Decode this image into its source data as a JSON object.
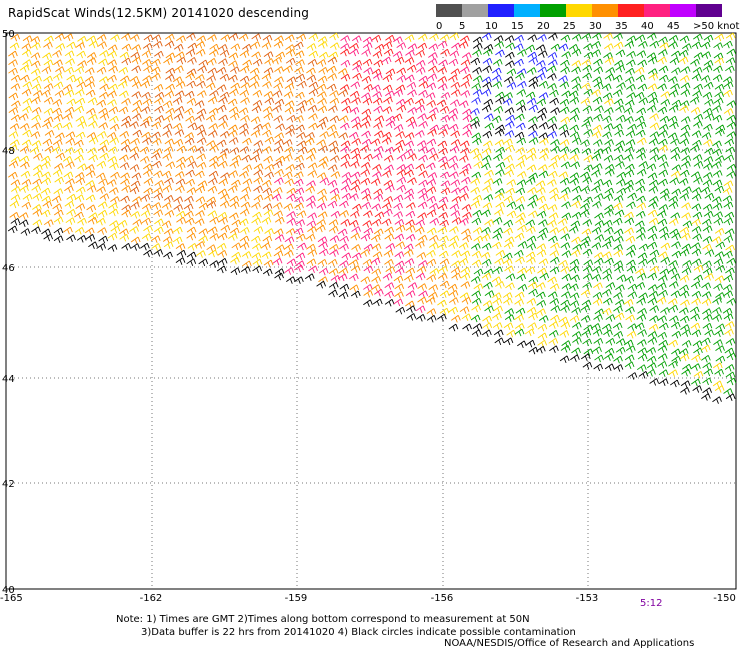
{
  "title": "RapidScat Winds(12.5KM) 20141020 descending",
  "legend": {
    "labels": [
      "0",
      "5",
      "10",
      "15",
      "20",
      "25",
      "30",
      "35",
      "40",
      "45",
      ">50 knots"
    ],
    "colors": [
      "#505050",
      "#a0a0a0",
      "#2020ff",
      "#00b0ff",
      "#00a000",
      "#ffd800",
      "#ff9000",
      "#ff2020",
      "#ff2080",
      "#c000ff",
      "#600090"
    ]
  },
  "axes": {
    "y_ticks": [
      "50",
      "48",
      "46",
      "44",
      "42",
      "40"
    ],
    "x_ticks": [
      "-165",
      "-162",
      "-159",
      "-156",
      "-153",
      "-150"
    ]
  },
  "time_label": "5:12",
  "notes": {
    "line1": "Note: 1) Times are GMT 2)Times along bottom correspond to measurement at 50N",
    "line2": "3)Data buffer is 22 hrs from 20141020 4) Black circles indicate possible contamination",
    "line3": "NOAA/NESDIS/Office of Research and Applications"
  }
}
